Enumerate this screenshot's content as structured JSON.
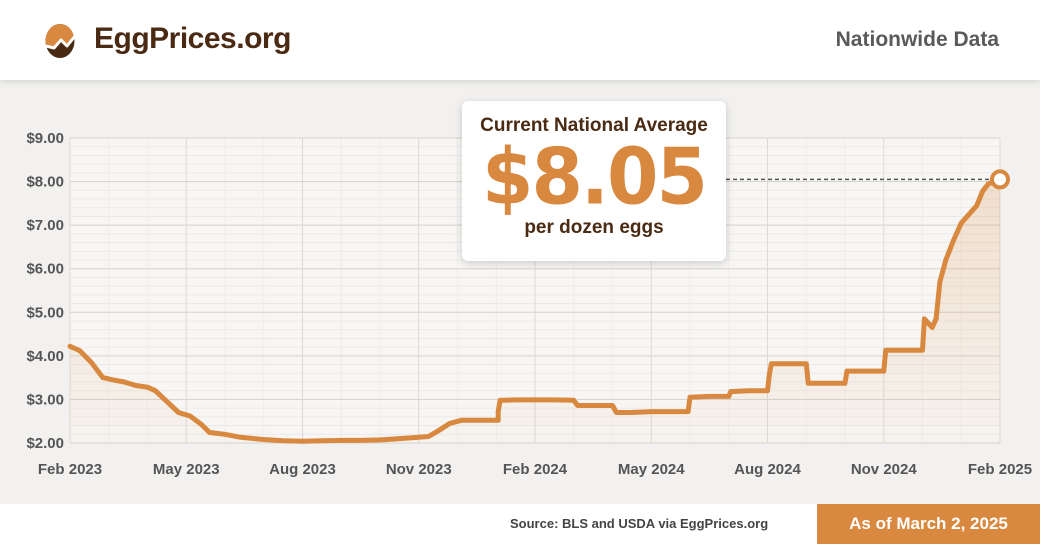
{
  "header": {
    "brand": "EggPrices.org",
    "subtitle": "Nationwide Data"
  },
  "callout": {
    "title": "Current National Average",
    "value": "$8.05",
    "sub": "per dozen eggs"
  },
  "footer": {
    "source": "Source: BLS and USDA via EggPrices.org",
    "as_of": "As of March 2, 2025"
  },
  "colors": {
    "line": "#d8893f",
    "brand_dark": "#4a2a12",
    "accent": "#d8893f"
  },
  "chart_data": {
    "type": "line",
    "title": "",
    "xlabel": "",
    "ylabel": "",
    "x_ticks": [
      "Feb 2023",
      "May 2023",
      "Aug 2023",
      "Nov 2023",
      "Feb 2024",
      "May 2024",
      "Aug 2024",
      "Nov 2024",
      "Feb 2025"
    ],
    "y_ticks": [
      "$2.00",
      "$3.00",
      "$4.00",
      "$5.00",
      "$6.00",
      "$7.00",
      "$8.00",
      "$9.00"
    ],
    "xlim": [
      0,
      24
    ],
    "ylim": [
      2,
      9
    ],
    "grid": true,
    "series": [
      {
        "points": [
          [
            0.0,
            4.22
          ],
          [
            0.25,
            4.12
          ],
          [
            0.55,
            3.85
          ],
          [
            0.85,
            3.5
          ],
          [
            1.1,
            3.45
          ],
          [
            1.4,
            3.4
          ],
          [
            1.7,
            3.32
          ],
          [
            2.0,
            3.28
          ],
          [
            2.2,
            3.2
          ],
          [
            2.5,
            2.95
          ],
          [
            2.8,
            2.7
          ],
          [
            3.1,
            2.62
          ],
          [
            3.4,
            2.42
          ],
          [
            3.6,
            2.24
          ],
          [
            4.0,
            2.2
          ],
          [
            4.4,
            2.13
          ],
          [
            5.0,
            2.08
          ],
          [
            5.5,
            2.05
          ],
          [
            6.0,
            2.04
          ],
          [
            6.5,
            2.05
          ],
          [
            7.0,
            2.06
          ],
          [
            7.5,
            2.06
          ],
          [
            8.0,
            2.07
          ],
          [
            8.5,
            2.1
          ],
          [
            9.0,
            2.13
          ],
          [
            9.25,
            2.15
          ],
          [
            9.45,
            2.25
          ],
          [
            9.8,
            2.45
          ],
          [
            10.1,
            2.52
          ],
          [
            10.5,
            2.52
          ],
          [
            11.05,
            2.52
          ],
          [
            11.05,
            2.72
          ],
          [
            11.1,
            2.98
          ],
          [
            11.5,
            2.99
          ],
          [
            12.0,
            2.99
          ],
          [
            12.5,
            2.99
          ],
          [
            13.0,
            2.98
          ],
          [
            13.1,
            2.86
          ],
          [
            13.5,
            2.86
          ],
          [
            14.0,
            2.86
          ],
          [
            14.1,
            2.7
          ],
          [
            14.5,
            2.7
          ],
          [
            15.0,
            2.72
          ],
          [
            15.5,
            2.72
          ],
          [
            15.95,
            2.72
          ],
          [
            16.0,
            3.05
          ],
          [
            16.5,
            3.07
          ],
          [
            17.0,
            3.07
          ],
          [
            17.05,
            3.18
          ],
          [
            17.5,
            3.2
          ],
          [
            18.0,
            3.2
          ],
          [
            18.05,
            3.58
          ],
          [
            18.1,
            3.82
          ],
          [
            18.5,
            3.82
          ],
          [
            19.0,
            3.82
          ],
          [
            19.05,
            3.37
          ],
          [
            19.5,
            3.37
          ],
          [
            20.0,
            3.37
          ],
          [
            20.05,
            3.65
          ],
          [
            20.5,
            3.65
          ],
          [
            21.0,
            3.65
          ],
          [
            21.05,
            4.13
          ],
          [
            21.5,
            4.13
          ],
          [
            22.0,
            4.13
          ],
          [
            22.05,
            4.85
          ],
          [
            22.15,
            4.75
          ],
          [
            22.25,
            4.65
          ],
          [
            22.35,
            4.85
          ],
          [
            22.45,
            5.7
          ],
          [
            22.6,
            6.2
          ],
          [
            22.8,
            6.65
          ],
          [
            23.0,
            7.05
          ],
          [
            23.2,
            7.25
          ],
          [
            23.4,
            7.45
          ],
          [
            23.55,
            7.78
          ],
          [
            23.7,
            7.95
          ],
          [
            24.0,
            8.05
          ]
        ]
      }
    ],
    "current_value": 8.05
  }
}
